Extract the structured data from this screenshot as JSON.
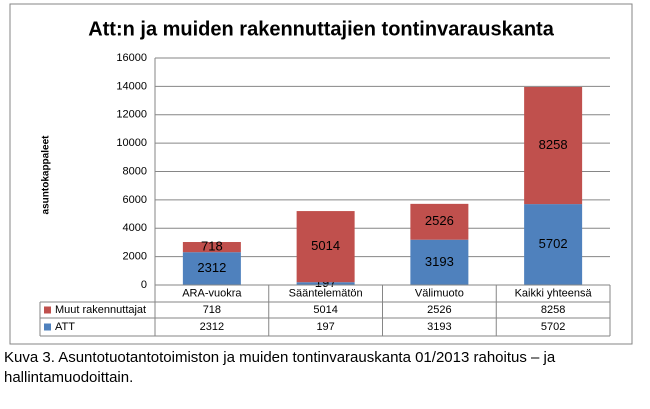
{
  "chart_data": {
    "type": "bar",
    "stacked": true,
    "title": "Att:n ja muiden rakennuttajien tontinvarauskanta",
    "y_label": "asuntokappaleet",
    "categories": [
      "ARA-vuokra",
      "Sääntelemätön",
      "Välimuoto",
      "Kaikki yhteensä"
    ],
    "series": [
      {
        "name": "ATT",
        "color": "#4f81bd",
        "values": [
          2312,
          197,
          3193,
          5702
        ]
      },
      {
        "name": "Muut rakennuttajat",
        "color": "#c0504d",
        "values": [
          718,
          5014,
          2526,
          8258
        ]
      }
    ],
    "ylim": [
      0,
      16000
    ],
    "yticks": [
      0,
      2000,
      4000,
      6000,
      8000,
      10000,
      12000,
      14000,
      16000
    ],
    "grid": true,
    "data_table": true
  },
  "caption": "Kuva 3. Asuntotuotantotoimiston ja muiden tontinvarauskanta 01/2013 rahoitus – ja hallintamuodoittain."
}
